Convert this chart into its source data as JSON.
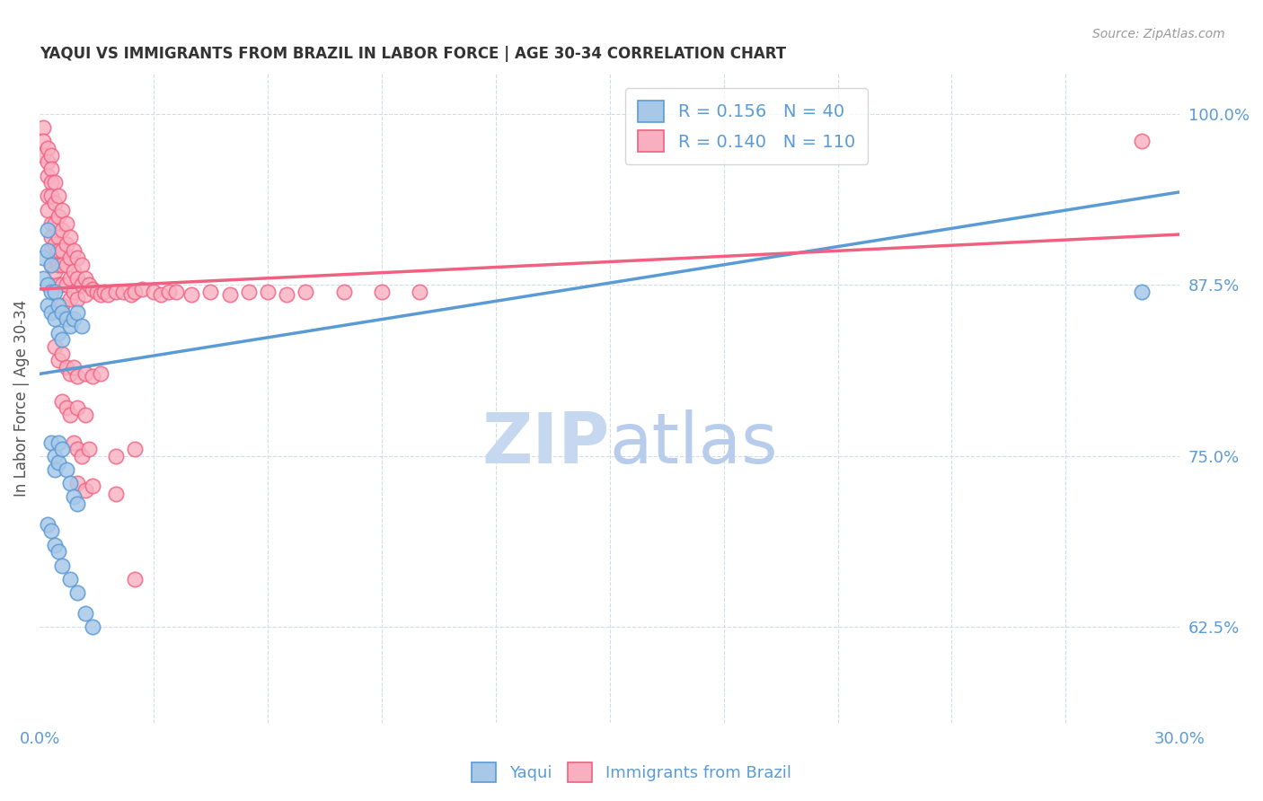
{
  "title": "YAQUI VS IMMIGRANTS FROM BRAZIL IN LABOR FORCE | AGE 30-34 CORRELATION CHART",
  "source_text": "Source: ZipAtlas.com",
  "ylabel": "In Labor Force | Age 30-34",
  "xlim": [
    0.0,
    0.3
  ],
  "ylim": [
    0.555,
    1.03
  ],
  "ytick_labels_right": [
    "62.5%",
    "75.0%",
    "87.5%",
    "100.0%"
  ],
  "ytick_values_right": [
    0.625,
    0.75,
    0.875,
    1.0
  ],
  "blue_color": "#5b9bd5",
  "pink_color": "#f06080",
  "blue_fill": "#a8c8e8",
  "pink_fill": "#f8b0c0",
  "axis_color": "#5b9bd5",
  "grid_color": "#d0dcea",
  "yaqui_line": [
    [
      0.0,
      0.81
    ],
    [
      0.3,
      0.943
    ]
  ],
  "brazil_line": [
    [
      0.0,
      0.872
    ],
    [
      0.3,
      0.912
    ]
  ],
  "yaqui_points": [
    [
      0.001,
      0.895
    ],
    [
      0.001,
      0.88
    ],
    [
      0.002,
      0.915
    ],
    [
      0.002,
      0.9
    ],
    [
      0.002,
      0.875
    ],
    [
      0.002,
      0.86
    ],
    [
      0.003,
      0.89
    ],
    [
      0.003,
      0.87
    ],
    [
      0.003,
      0.855
    ],
    [
      0.004,
      0.87
    ],
    [
      0.004,
      0.85
    ],
    [
      0.005,
      0.86
    ],
    [
      0.005,
      0.84
    ],
    [
      0.006,
      0.855
    ],
    [
      0.006,
      0.835
    ],
    [
      0.007,
      0.85
    ],
    [
      0.008,
      0.845
    ],
    [
      0.009,
      0.85
    ],
    [
      0.01,
      0.855
    ],
    [
      0.011,
      0.845
    ],
    [
      0.003,
      0.76
    ],
    [
      0.004,
      0.75
    ],
    [
      0.004,
      0.74
    ],
    [
      0.005,
      0.76
    ],
    [
      0.005,
      0.745
    ],
    [
      0.006,
      0.755
    ],
    [
      0.007,
      0.74
    ],
    [
      0.008,
      0.73
    ],
    [
      0.009,
      0.72
    ],
    [
      0.01,
      0.715
    ],
    [
      0.002,
      0.7
    ],
    [
      0.003,
      0.695
    ],
    [
      0.004,
      0.685
    ],
    [
      0.005,
      0.68
    ],
    [
      0.006,
      0.67
    ],
    [
      0.008,
      0.66
    ],
    [
      0.01,
      0.65
    ],
    [
      0.012,
      0.635
    ],
    [
      0.014,
      0.625
    ],
    [
      0.29,
      0.87
    ]
  ],
  "brazil_points": [
    [
      0.001,
      0.99
    ],
    [
      0.001,
      0.98
    ],
    [
      0.001,
      0.97
    ],
    [
      0.002,
      0.975
    ],
    [
      0.002,
      0.965
    ],
    [
      0.002,
      0.955
    ],
    [
      0.002,
      0.94
    ],
    [
      0.002,
      0.93
    ],
    [
      0.003,
      0.97
    ],
    [
      0.003,
      0.96
    ],
    [
      0.003,
      0.95
    ],
    [
      0.003,
      0.94
    ],
    [
      0.003,
      0.92
    ],
    [
      0.003,
      0.91
    ],
    [
      0.003,
      0.9
    ],
    [
      0.003,
      0.89
    ],
    [
      0.004,
      0.95
    ],
    [
      0.004,
      0.935
    ],
    [
      0.004,
      0.92
    ],
    [
      0.004,
      0.905
    ],
    [
      0.004,
      0.895
    ],
    [
      0.004,
      0.885
    ],
    [
      0.005,
      0.94
    ],
    [
      0.005,
      0.925
    ],
    [
      0.005,
      0.91
    ],
    [
      0.005,
      0.9
    ],
    [
      0.005,
      0.89
    ],
    [
      0.005,
      0.875
    ],
    [
      0.006,
      0.93
    ],
    [
      0.006,
      0.915
    ],
    [
      0.006,
      0.9
    ],
    [
      0.006,
      0.89
    ],
    [
      0.006,
      0.875
    ],
    [
      0.006,
      0.86
    ],
    [
      0.007,
      0.92
    ],
    [
      0.007,
      0.905
    ],
    [
      0.007,
      0.89
    ],
    [
      0.007,
      0.875
    ],
    [
      0.008,
      0.91
    ],
    [
      0.008,
      0.895
    ],
    [
      0.008,
      0.88
    ],
    [
      0.008,
      0.865
    ],
    [
      0.009,
      0.9
    ],
    [
      0.009,
      0.885
    ],
    [
      0.009,
      0.87
    ],
    [
      0.01,
      0.895
    ],
    [
      0.01,
      0.88
    ],
    [
      0.01,
      0.865
    ],
    [
      0.011,
      0.89
    ],
    [
      0.011,
      0.875
    ],
    [
      0.012,
      0.88
    ],
    [
      0.012,
      0.868
    ],
    [
      0.013,
      0.875
    ],
    [
      0.014,
      0.872
    ],
    [
      0.015,
      0.87
    ],
    [
      0.016,
      0.868
    ],
    [
      0.017,
      0.87
    ],
    [
      0.018,
      0.868
    ],
    [
      0.02,
      0.87
    ],
    [
      0.022,
      0.87
    ],
    [
      0.024,
      0.868
    ],
    [
      0.025,
      0.87
    ],
    [
      0.027,
      0.872
    ],
    [
      0.03,
      0.87
    ],
    [
      0.032,
      0.868
    ],
    [
      0.034,
      0.87
    ],
    [
      0.036,
      0.87
    ],
    [
      0.04,
      0.868
    ],
    [
      0.045,
      0.87
    ],
    [
      0.05,
      0.868
    ],
    [
      0.055,
      0.87
    ],
    [
      0.06,
      0.87
    ],
    [
      0.065,
      0.868
    ],
    [
      0.07,
      0.87
    ],
    [
      0.08,
      0.87
    ],
    [
      0.09,
      0.87
    ],
    [
      0.1,
      0.87
    ],
    [
      0.004,
      0.83
    ],
    [
      0.005,
      0.82
    ],
    [
      0.006,
      0.825
    ],
    [
      0.007,
      0.815
    ],
    [
      0.008,
      0.81
    ],
    [
      0.009,
      0.815
    ],
    [
      0.01,
      0.808
    ],
    [
      0.012,
      0.81
    ],
    [
      0.014,
      0.808
    ],
    [
      0.016,
      0.81
    ],
    [
      0.006,
      0.79
    ],
    [
      0.007,
      0.785
    ],
    [
      0.008,
      0.78
    ],
    [
      0.01,
      0.785
    ],
    [
      0.012,
      0.78
    ],
    [
      0.009,
      0.76
    ],
    [
      0.01,
      0.755
    ],
    [
      0.011,
      0.75
    ],
    [
      0.013,
      0.755
    ],
    [
      0.02,
      0.75
    ],
    [
      0.025,
      0.755
    ],
    [
      0.01,
      0.73
    ],
    [
      0.012,
      0.725
    ],
    [
      0.014,
      0.728
    ],
    [
      0.02,
      0.722
    ],
    [
      0.025,
      0.66
    ],
    [
      0.29,
      0.98
    ]
  ]
}
